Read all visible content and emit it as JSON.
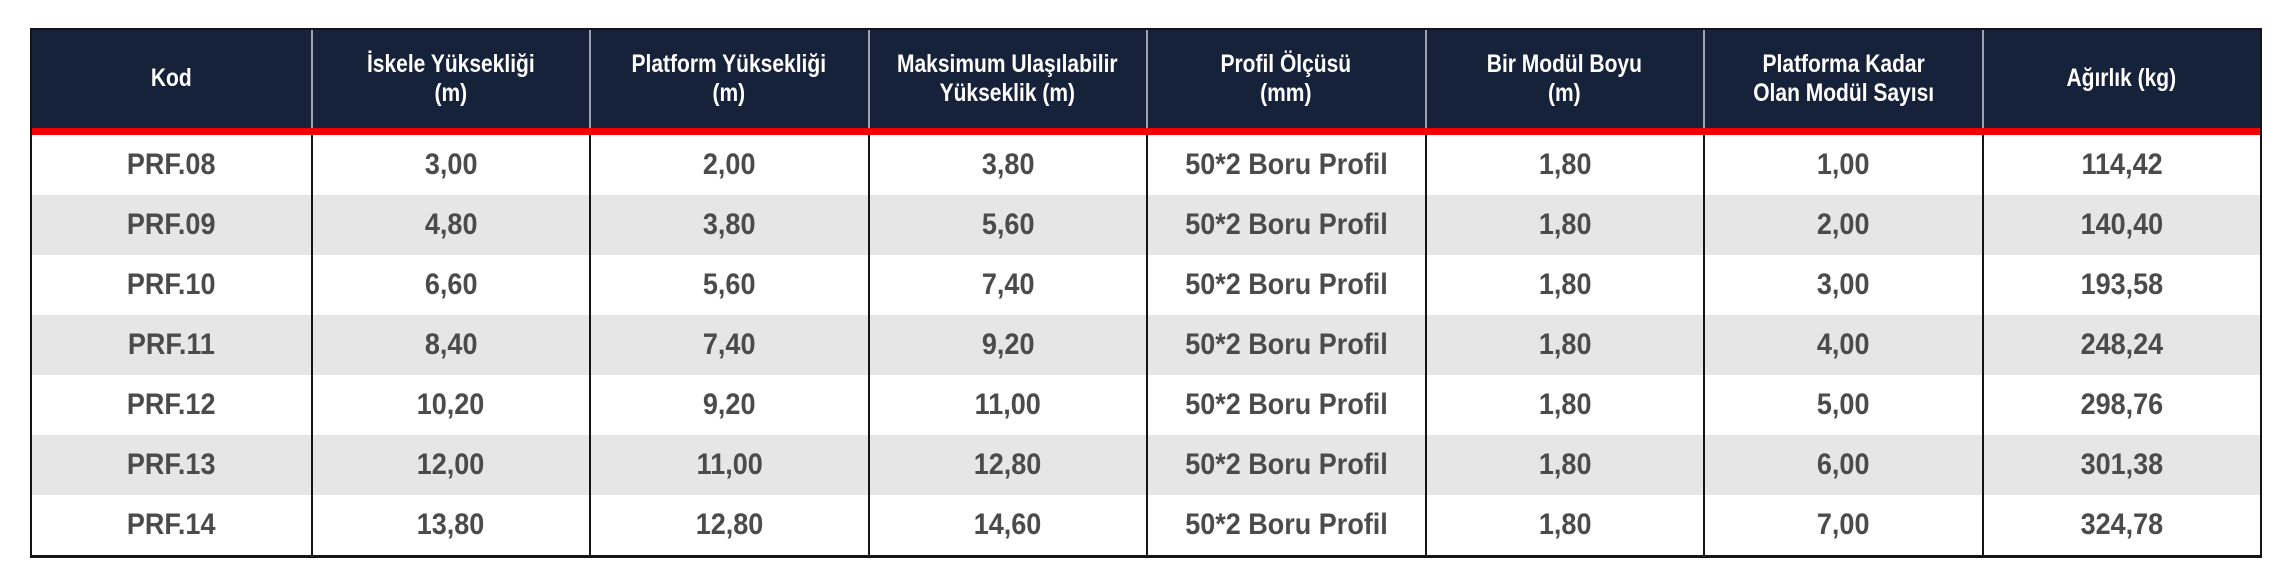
{
  "colors": {
    "header_background": "#16213a",
    "header_text": "#ffffff",
    "header_separator": "#9aa3b2",
    "accent_red_bar": "#f20000",
    "row_stripe": "#e6e6e6",
    "row_white": "#ffffff",
    "cell_text": "#4b4b4b",
    "table_border": "#141414"
  },
  "chart_data": {
    "type": "table",
    "title": "",
    "legend_position": "none",
    "grid": "vertical-borders-with-zebra-stripes",
    "columns": [
      {
        "id": "kod",
        "label": "Kod",
        "lines": [
          "Kod"
        ]
      },
      {
        "id": "iskele-yuksekligi",
        "label": "İskele Yüksekliği (m)",
        "lines": [
          "İskele Yüksekliği",
          "(m)"
        ]
      },
      {
        "id": "platform-yuksekligi",
        "label": "Platform Yüksekliği (m)",
        "lines": [
          "Platform Yüksekliği",
          "(m)"
        ]
      },
      {
        "id": "maksimum-ulasilabilir-yukseklik",
        "label": "Maksimum Ulaşılabilir Yükseklik (m)",
        "lines": [
          "Maksimum Ulaşılabilir",
          "Yükseklik (m)"
        ]
      },
      {
        "id": "profil-olcusu",
        "label": "Profil Ölçüsü (mm)",
        "lines": [
          "Profil Ölçüsü",
          "(mm)"
        ]
      },
      {
        "id": "bir-modul-boyu",
        "label": "Bir Modül Boyu (m)",
        "lines": [
          "Bir Modül Boyu",
          "(m)"
        ]
      },
      {
        "id": "platforma-kadar-modul-sayisi",
        "label": "Platforma Kadar Olan Modül Sayısı",
        "lines": [
          "Platforma Kadar",
          "Olan Modül Sayısı"
        ]
      },
      {
        "id": "agirlik",
        "label": "Ağırlık (kg)",
        "lines": [
          "Ağırlık (kg)"
        ]
      }
    ],
    "rows": [
      [
        "PRF.08",
        "3,00",
        "2,00",
        "3,80",
        "50*2 Boru Profil",
        "1,80",
        "1,00",
        "114,42"
      ],
      [
        "PRF.09",
        "4,80",
        "3,80",
        "5,60",
        "50*2 Boru Profil",
        "1,80",
        "2,00",
        "140,40"
      ],
      [
        "PRF.10",
        "6,60",
        "5,60",
        "7,40",
        "50*2 Boru Profil",
        "1,80",
        "3,00",
        "193,58"
      ],
      [
        "PRF.11",
        "8,40",
        "7,40",
        "9,20",
        "50*2 Boru Profil",
        "1,80",
        "4,00",
        "248,24"
      ],
      [
        "PRF.12",
        "10,20",
        "9,20",
        "11,00",
        "50*2 Boru Profil",
        "1,80",
        "5,00",
        "298,76"
      ],
      [
        "PRF.13",
        "12,00",
        "11,00",
        "12,80",
        "50*2 Boru Profil",
        "1,80",
        "6,00",
        "301,38"
      ],
      [
        "PRF.14",
        "13,80",
        "12,80",
        "14,60",
        "50*2 Boru Profil",
        "1,80",
        "7,00",
        "324,78"
      ]
    ]
  }
}
